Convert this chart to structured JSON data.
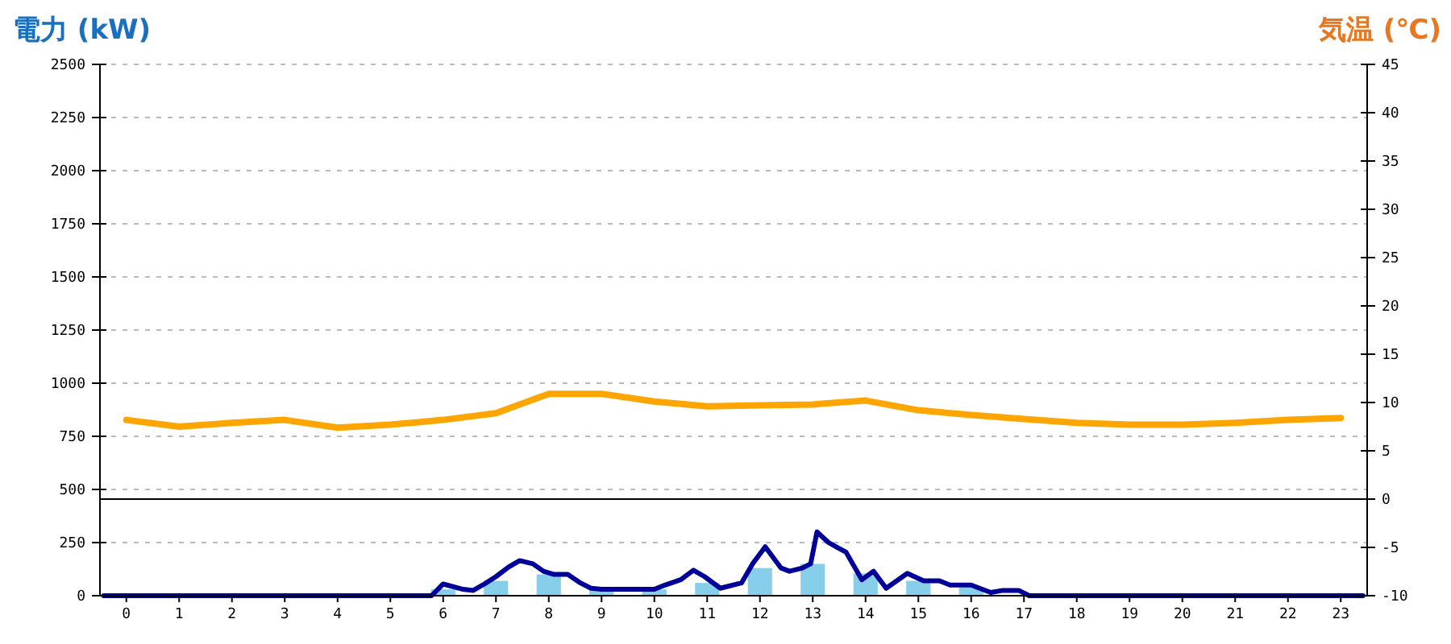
{
  "chart_data": {
    "type": "bar",
    "ylabel": "電力 (kW)",
    "y2label": "気温 (℃)",
    "xlim": [
      -0.5,
      23.5
    ],
    "xticks": [
      0,
      1,
      2,
      3,
      4,
      5,
      6,
      7,
      8,
      9,
      10,
      11,
      12,
      13,
      14,
      15,
      16,
      17,
      18,
      19,
      20,
      21,
      22,
      23
    ],
    "ylim": [
      0,
      2500
    ],
    "yticks": [
      0,
      250,
      500,
      750,
      1000,
      1250,
      1500,
      1750,
      2000,
      2250,
      2500
    ],
    "y2lim": [
      -10,
      45
    ],
    "y2ticks": [
      -10,
      -5,
      0,
      5,
      10,
      15,
      20,
      25,
      30,
      35,
      40,
      45
    ],
    "grid": "y",
    "ref_lines": [
      {
        "axis": "y2",
        "value": 0,
        "color": "#000000"
      }
    ],
    "series": [
      {
        "color": "#87ceeb",
        "x": [
          0,
          1,
          2,
          3,
          4,
          5,
          6,
          7,
          8,
          9,
          10,
          11,
          12,
          13,
          14,
          15,
          16,
          17,
          18,
          19,
          20,
          21,
          22,
          23
        ],
        "values": [
          0,
          0,
          0,
          0,
          0,
          0,
          30,
          70,
          100,
          30,
          30,
          60,
          130,
          150,
          105,
          70,
          40,
          0,
          0,
          0,
          0,
          0,
          0,
          0
        ]
      },
      {
        "type": "line",
        "color": "#000099",
        "x": [
          -0.43,
          5.78,
          6.0,
          6.38,
          6.57,
          6.78,
          7.0,
          7.24,
          7.45,
          7.7,
          7.9,
          8.1,
          8.36,
          8.6,
          8.8,
          9.0,
          10.0,
          10.2,
          10.5,
          10.74,
          10.95,
          11.25,
          11.65,
          11.86,
          12.1,
          12.4,
          12.56,
          12.8,
          12.96,
          13.08,
          13.3,
          13.48,
          13.63,
          13.93,
          14.15,
          14.39,
          14.79,
          15.1,
          15.4,
          15.6,
          16.0,
          16.37,
          16.6,
          16.9,
          17.1,
          23.42
        ],
        "values": [
          0,
          0,
          55,
          30,
          25,
          55,
          90,
          135,
          165,
          150,
          115,
          100,
          100,
          60,
          35,
          30,
          30,
          50,
          75,
          120,
          90,
          35,
          60,
          150,
          230,
          130,
          115,
          130,
          150,
          300,
          250,
          225,
          205,
          75,
          115,
          35,
          105,
          70,
          70,
          50,
          50,
          15,
          25,
          25,
          0,
          0
        ]
      },
      {
        "type": "line",
        "axis": "y2",
        "color": "#ffa500",
        "x": [
          0,
          1,
          2,
          3,
          4,
          5,
          6,
          7,
          8,
          9,
          10,
          11,
          12,
          13,
          14,
          15,
          16,
          17,
          18,
          19,
          20,
          21,
          22,
          23
        ],
        "values": [
          8.2,
          7.5,
          7.9,
          8.2,
          7.4,
          7.7,
          8.2,
          8.9,
          10.9,
          10.9,
          10.1,
          9.6,
          9.7,
          9.8,
          10.2,
          9.2,
          8.7,
          8.3,
          7.9,
          7.7,
          7.7,
          7.9,
          8.2,
          8.4
        ]
      }
    ]
  }
}
